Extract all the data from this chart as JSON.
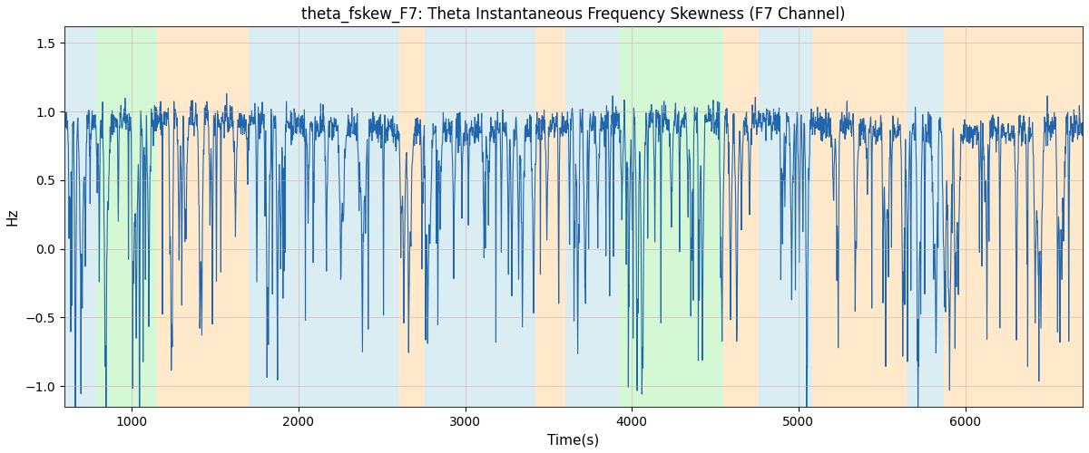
{
  "title": "theta_fskew_F7: Theta Instantaneous Frequency Skewness (F7 Channel)",
  "xlabel": "Time(s)",
  "ylabel": "Hz",
  "xlim": [
    595,
    6705
  ],
  "ylim": [
    -1.15,
    1.62
  ],
  "yticks": [
    -1.0,
    -0.5,
    0.0,
    0.5,
    1.0,
    1.5
  ],
  "xticks": [
    1000,
    2000,
    3000,
    4000,
    5000,
    6000
  ],
  "line_color": "#2166ac",
  "line_width": 0.8,
  "bg_bands": [
    {
      "xmin": 595,
      "xmax": 790,
      "color": "#add8e6",
      "alpha": 0.45
    },
    {
      "xmin": 790,
      "xmax": 1150,
      "color": "#90ee90",
      "alpha": 0.38
    },
    {
      "xmin": 1150,
      "xmax": 1700,
      "color": "#ffd8a0",
      "alpha": 0.55
    },
    {
      "xmin": 1700,
      "xmax": 2080,
      "color": "#add8e6",
      "alpha": 0.45
    },
    {
      "xmin": 2080,
      "xmax": 2600,
      "color": "#add8e6",
      "alpha": 0.45
    },
    {
      "xmin": 2600,
      "xmax": 2760,
      "color": "#ffd8a0",
      "alpha": 0.55
    },
    {
      "xmin": 2760,
      "xmax": 3420,
      "color": "#add8e6",
      "alpha": 0.45
    },
    {
      "xmin": 3420,
      "xmax": 3600,
      "color": "#ffd8a0",
      "alpha": 0.55
    },
    {
      "xmin": 3600,
      "xmax": 3930,
      "color": "#add8e6",
      "alpha": 0.45
    },
    {
      "xmin": 3930,
      "xmax": 4150,
      "color": "#90ee90",
      "alpha": 0.38
    },
    {
      "xmin": 4150,
      "xmax": 4550,
      "color": "#90ee90",
      "alpha": 0.38
    },
    {
      "xmin": 4550,
      "xmax": 4760,
      "color": "#ffd8a0",
      "alpha": 0.55
    },
    {
      "xmin": 4760,
      "xmax": 5080,
      "color": "#add8e6",
      "alpha": 0.45
    },
    {
      "xmin": 5080,
      "xmax": 5650,
      "color": "#ffd8a0",
      "alpha": 0.55
    },
    {
      "xmin": 5650,
      "xmax": 5870,
      "color": "#add8e6",
      "alpha": 0.45
    },
    {
      "xmin": 5870,
      "xmax": 6705,
      "color": "#ffd8a0",
      "alpha": 0.55
    }
  ],
  "seed": 42,
  "n_points": 3000,
  "figsize": [
    12.0,
    5.0
  ],
  "dpi": 100
}
